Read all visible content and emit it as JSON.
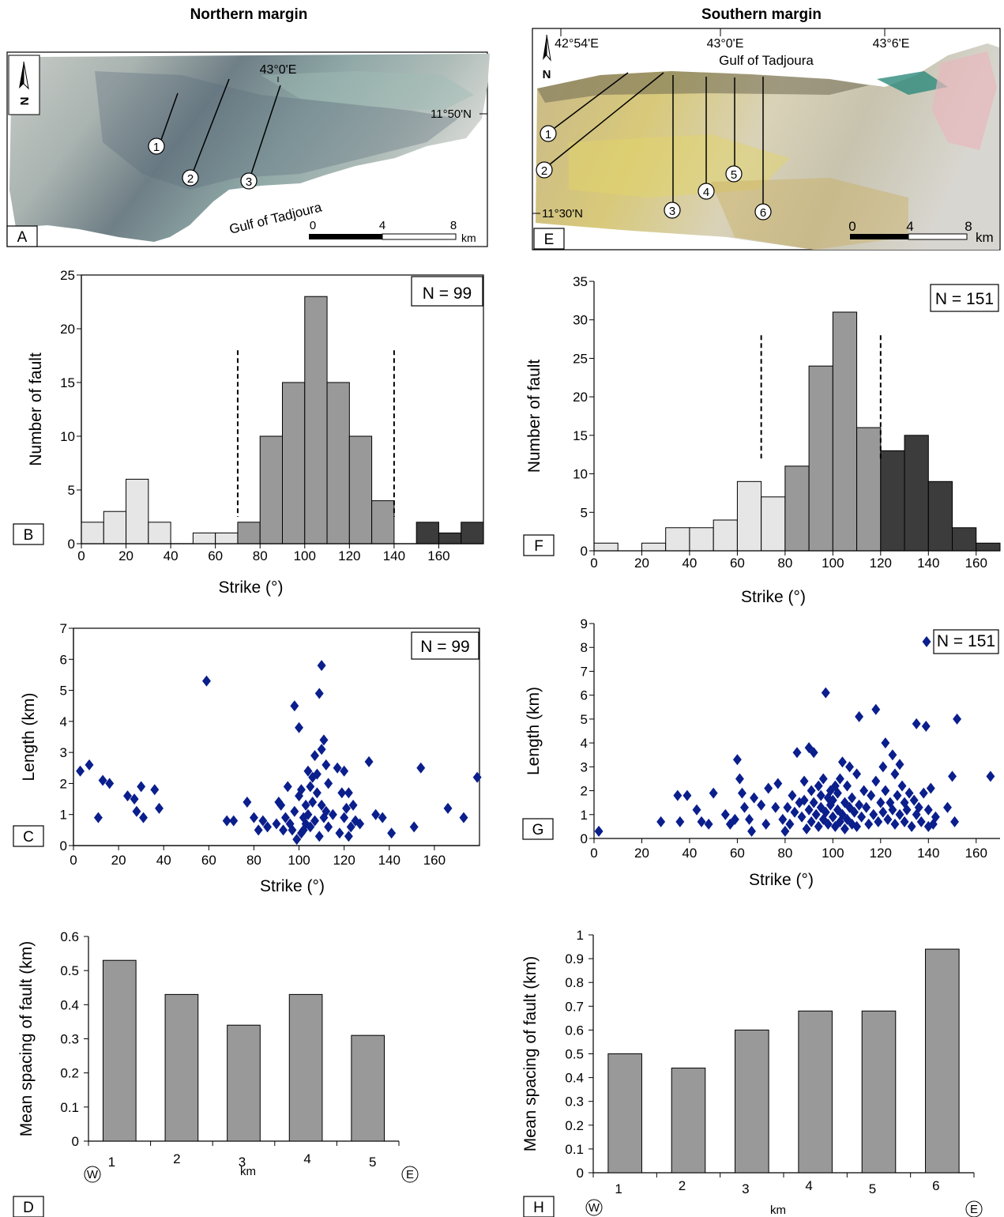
{
  "headers": {
    "north": "Northern margin",
    "south": "Southern margin"
  },
  "maps": {
    "north": {
      "panel": "A",
      "north_arrow": "N",
      "lon_label": "43°0'E",
      "lat_label": "11°50'N",
      "gulf": "Gulf of Tadjoura",
      "profiles": [
        "1",
        "2",
        "3"
      ],
      "scale": {
        "ticks": [
          "0",
          "4",
          "8"
        ],
        "unit": "km"
      }
    },
    "south": {
      "panel": "E",
      "north_arrow": "N",
      "lon_labels": [
        "42°54'E",
        "43°0'E",
        "43°6'E"
      ],
      "lat_label": "11°30'N",
      "gulf": "Gulf of Tadjoura",
      "profiles": [
        "1",
        "2",
        "3",
        "4",
        "5",
        "6"
      ],
      "scale": {
        "ticks": [
          "0",
          "4",
          "8"
        ],
        "unit": "km"
      }
    }
  },
  "chart_data": [
    {
      "panel": "B",
      "type": "bar",
      "subtype": "histogram",
      "n_label": "N = 99",
      "xlabel": "Strike (°)",
      "ylabel": "Number of fault",
      "xlim": [
        0,
        180
      ],
      "ylim": [
        0,
        25
      ],
      "xticks": [
        0,
        20,
        40,
        60,
        80,
        100,
        120,
        140,
        160
      ],
      "yticks": [
        0,
        5,
        10,
        15,
        20,
        25
      ],
      "bin_width": 10,
      "bins": [
        {
          "start": 0,
          "count": 2,
          "group": "light"
        },
        {
          "start": 10,
          "count": 3,
          "group": "light"
        },
        {
          "start": 20,
          "count": 6,
          "group": "light"
        },
        {
          "start": 30,
          "count": 2,
          "group": "light"
        },
        {
          "start": 50,
          "count": 1,
          "group": "light"
        },
        {
          "start": 60,
          "count": 1,
          "group": "light"
        },
        {
          "start": 70,
          "count": 2,
          "group": "medium"
        },
        {
          "start": 80,
          "count": 10,
          "group": "medium"
        },
        {
          "start": 90,
          "count": 15,
          "group": "medium"
        },
        {
          "start": 100,
          "count": 23,
          "group": "medium"
        },
        {
          "start": 110,
          "count": 15,
          "group": "medium"
        },
        {
          "start": 120,
          "count": 10,
          "group": "medium"
        },
        {
          "start": 130,
          "count": 4,
          "group": "medium"
        },
        {
          "start": 150,
          "count": 2,
          "group": "dark"
        },
        {
          "start": 160,
          "count": 1,
          "group": "dark"
        },
        {
          "start": 170,
          "count": 2,
          "group": "dark"
        }
      ],
      "dashed_lines": [
        70,
        140
      ],
      "colors": {
        "light": "#e6e6e6",
        "medium": "#999999",
        "dark": "#3c3c3c"
      }
    },
    {
      "panel": "F",
      "type": "bar",
      "subtype": "histogram",
      "n_label": "N = 151",
      "xlabel": "Strike (°)",
      "ylabel": "Number of fault",
      "xlim": [
        0,
        170
      ],
      "ylim": [
        0,
        35
      ],
      "xticks": [
        0,
        20,
        40,
        60,
        80,
        100,
        120,
        140,
        160
      ],
      "yticks": [
        0,
        5,
        10,
        15,
        20,
        25,
        30,
        35
      ],
      "bin_width": 10,
      "bins": [
        {
          "start": 0,
          "count": 1,
          "group": "light"
        },
        {
          "start": 20,
          "count": 1,
          "group": "light"
        },
        {
          "start": 30,
          "count": 3,
          "group": "light"
        },
        {
          "start": 40,
          "count": 3,
          "group": "light"
        },
        {
          "start": 50,
          "count": 4,
          "group": "light"
        },
        {
          "start": 60,
          "count": 9,
          "group": "light"
        },
        {
          "start": 70,
          "count": 7,
          "group": "light"
        },
        {
          "start": 80,
          "count": 11,
          "group": "medium"
        },
        {
          "start": 90,
          "count": 24,
          "group": "medium"
        },
        {
          "start": 100,
          "count": 31,
          "group": "medium"
        },
        {
          "start": 110,
          "count": 16,
          "group": "medium"
        },
        {
          "start": 120,
          "count": 13,
          "group": "dark"
        },
        {
          "start": 130,
          "count": 15,
          "group": "dark"
        },
        {
          "start": 140,
          "count": 9,
          "group": "dark"
        },
        {
          "start": 150,
          "count": 3,
          "group": "dark"
        },
        {
          "start": 160,
          "count": 1,
          "group": "dark"
        }
      ],
      "dashed_lines": [
        70,
        120
      ],
      "colors": {
        "light": "#e6e6e6",
        "medium": "#999999",
        "dark": "#3c3c3c"
      }
    },
    {
      "panel": "C",
      "type": "scatter",
      "n_label": "N = 99",
      "xlabel": "Strike (°)",
      "ylabel": "Length (km)",
      "xlim": [
        0,
        180
      ],
      "ylim": [
        0,
        7
      ],
      "xticks": [
        0,
        20,
        40,
        60,
        80,
        100,
        120,
        140,
        160
      ],
      "yticks": [
        0,
        1,
        2,
        3,
        4,
        5,
        6,
        7
      ],
      "marker_color": "#0a1e8c",
      "points": [
        [
          3,
          2.4
        ],
        [
          7,
          2.6
        ],
        [
          11,
          0.9
        ],
        [
          13,
          2.1
        ],
        [
          16,
          2.0
        ],
        [
          24,
          1.6
        ],
        [
          27,
          1.5
        ],
        [
          28,
          1.1
        ],
        [
          30,
          1.9
        ],
        [
          31,
          0.9
        ],
        [
          36,
          1.8
        ],
        [
          38,
          1.2
        ],
        [
          59,
          5.3
        ],
        [
          68,
          0.8
        ],
        [
          71,
          0.8
        ],
        [
          77,
          1.4
        ],
        [
          80,
          0.9
        ],
        [
          82,
          0.5
        ],
        [
          84,
          0.8
        ],
        [
          86,
          0.6
        ],
        [
          90,
          0.7
        ],
        [
          91,
          1.4
        ],
        [
          92,
          1.3
        ],
        [
          93,
          0.5
        ],
        [
          94,
          0.9
        ],
        [
          95,
          1.9
        ],
        [
          96,
          0.7
        ],
        [
          97,
          0.5
        ],
        [
          98,
          4.5
        ],
        [
          98,
          1.1
        ],
        [
          99,
          0.2
        ],
        [
          100,
          3.8
        ],
        [
          100,
          1.6
        ],
        [
          101,
          0.4
        ],
        [
          101,
          1.8
        ],
        [
          102,
          0.9
        ],
        [
          102,
          0.5
        ],
        [
          103,
          1.3
        ],
        [
          103,
          0.7
        ],
        [
          104,
          2.4
        ],
        [
          104,
          1.0
        ],
        [
          105,
          1.9
        ],
        [
          105,
          0.6
        ],
        [
          106,
          2.2
        ],
        [
          106,
          1.4
        ],
        [
          107,
          2.9
        ],
        [
          107,
          0.8
        ],
        [
          108,
          1.7
        ],
        [
          108,
          2.3
        ],
        [
          109,
          4.9
        ],
        [
          109,
          0.3
        ],
        [
          110,
          5.8
        ],
        [
          110,
          3.1
        ],
        [
          110,
          1.3
        ],
        [
          111,
          3.4
        ],
        [
          111,
          0.9
        ],
        [
          112,
          2.6
        ],
        [
          112,
          1.1
        ],
        [
          113,
          2.0
        ],
        [
          113,
          0.6
        ],
        [
          115,
          1.0
        ],
        [
          117,
          2.5
        ],
        [
          118,
          0.4
        ],
        [
          119,
          1.7
        ],
        [
          120,
          2.4
        ],
        [
          120,
          0.9
        ],
        [
          121,
          1.2
        ],
        [
          122,
          0.3
        ],
        [
          122,
          1.7
        ],
        [
          123,
          0.6
        ],
        [
          124,
          1.3
        ],
        [
          125,
          0.8
        ],
        [
          127,
          0.7
        ],
        [
          131,
          2.7
        ],
        [
          134,
          1.0
        ],
        [
          137,
          0.9
        ],
        [
          141,
          0.4
        ],
        [
          151,
          0.6
        ],
        [
          154,
          2.5
        ],
        [
          166,
          1.2
        ],
        [
          173,
          0.9
        ],
        [
          179,
          2.2
        ]
      ]
    },
    {
      "panel": "G",
      "type": "scatter",
      "n_label": "N = 151",
      "xlabel": "Strike (°)",
      "ylabel": "Length (km)",
      "xlim": [
        0,
        170
      ],
      "ylim": [
        0,
        9
      ],
      "xticks": [
        0,
        20,
        40,
        60,
        80,
        100,
        120,
        140,
        160
      ],
      "yticks": [
        0,
        1,
        2,
        3,
        4,
        5,
        6,
        7,
        8,
        9
      ],
      "marker_color": "#0a1e8c",
      "points": [
        [
          2,
          0.3
        ],
        [
          28,
          0.7
        ],
        [
          35,
          1.8
        ],
        [
          36,
          0.7
        ],
        [
          39,
          1.8
        ],
        [
          43,
          1.2
        ],
        [
          45,
          0.7
        ],
        [
          48,
          0.6
        ],
        [
          50,
          1.9
        ],
        [
          55,
          1.0
        ],
        [
          57,
          0.6
        ],
        [
          59,
          0.8
        ],
        [
          60,
          3.3
        ],
        [
          61,
          2.5
        ],
        [
          62,
          1.9
        ],
        [
          63,
          1.3
        ],
        [
          65,
          0.8
        ],
        [
          66,
          0.3
        ],
        [
          67,
          1.7
        ],
        [
          70,
          1.4
        ],
        [
          72,
          0.6
        ],
        [
          73,
          2.1
        ],
        [
          76,
          1.3
        ],
        [
          77,
          2.3
        ],
        [
          79,
          0.8
        ],
        [
          80,
          0.3
        ],
        [
          81,
          1.3
        ],
        [
          82,
          0.6
        ],
        [
          83,
          1.8
        ],
        [
          84,
          1.1
        ],
        [
          85,
          3.6
        ],
        [
          86,
          1.5
        ],
        [
          87,
          0.9
        ],
        [
          88,
          2.4
        ],
        [
          88,
          1.6
        ],
        [
          89,
          0.4
        ],
        [
          90,
          1.2
        ],
        [
          90,
          3.8
        ],
        [
          91,
          2.0
        ],
        [
          91,
          0.7
        ],
        [
          92,
          3.6
        ],
        [
          92,
          1.5
        ],
        [
          93,
          1.0
        ],
        [
          94,
          2.2
        ],
        [
          94,
          0.5
        ],
        [
          95,
          1.3
        ],
        [
          95,
          1.8
        ],
        [
          96,
          0.8
        ],
        [
          96,
          2.5
        ],
        [
          97,
          1.1
        ],
        [
          97,
          6.1
        ],
        [
          98,
          1.7
        ],
        [
          98,
          0.6
        ],
        [
          99,
          1.4
        ],
        [
          99,
          2.0
        ],
        [
          100,
          0.9
        ],
        [
          100,
          1.6
        ],
        [
          101,
          2.2
        ],
        [
          101,
          0.5
        ],
        [
          102,
          1.2
        ],
        [
          102,
          1.9
        ],
        [
          103,
          0.7
        ],
        [
          103,
          2.5
        ],
        [
          104,
          3.2
        ],
        [
          104,
          1.0
        ],
        [
          105,
          1.5
        ],
        [
          105,
          0.4
        ],
        [
          106,
          2.2
        ],
        [
          106,
          0.8
        ],
        [
          107,
          1.3
        ],
        [
          107,
          3.0
        ],
        [
          108,
          0.6
        ],
        [
          108,
          1.7
        ],
        [
          109,
          1.1
        ],
        [
          110,
          2.7
        ],
        [
          110,
          0.5
        ],
        [
          111,
          5.1
        ],
        [
          111,
          1.4
        ],
        [
          112,
          0.9
        ],
        [
          113,
          2.0
        ],
        [
          114,
          1.3
        ],
        [
          115,
          0.6
        ],
        [
          116,
          1.8
        ],
        [
          117,
          1.0
        ],
        [
          118,
          5.4
        ],
        [
          118,
          2.4
        ],
        [
          119,
          0.7
        ],
        [
          120,
          1.5
        ],
        [
          121,
          3.0
        ],
        [
          121,
          1.1
        ],
        [
          122,
          4.0
        ],
        [
          122,
          2.0
        ],
        [
          123,
          0.8
        ],
        [
          124,
          1.5
        ],
        [
          125,
          3.5
        ],
        [
          125,
          1.2
        ],
        [
          126,
          2.7
        ],
        [
          126,
          0.6
        ],
        [
          127,
          1.8
        ],
        [
          128,
          3.1
        ],
        [
          128,
          1.0
        ],
        [
          129,
          2.2
        ],
        [
          130,
          1.5
        ],
        [
          130,
          0.7
        ],
        [
          131,
          1.2
        ],
        [
          132,
          1.9
        ],
        [
          133,
          0.5
        ],
        [
          134,
          1.6
        ],
        [
          135,
          4.8
        ],
        [
          135,
          1.0
        ],
        [
          136,
          1.3
        ],
        [
          137,
          0.7
        ],
        [
          138,
          1.9
        ],
        [
          139,
          4.7
        ],
        [
          140,
          1.2
        ],
        [
          140,
          0.5
        ],
        [
          141,
          2.1
        ],
        [
          142,
          0.6
        ],
        [
          143,
          0.9
        ],
        [
          148,
          1.3
        ],
        [
          150,
          2.6
        ],
        [
          151,
          0.7
        ],
        [
          152,
          5.0
        ],
        [
          166,
          2.6
        ]
      ]
    },
    {
      "panel": "D",
      "type": "bar",
      "xlabel": "km",
      "ylabel": "Mean spacing of fault (km)",
      "ylim": [
        0,
        0.6
      ],
      "yticks": [
        "0",
        "0.1",
        "0.2",
        "0.3",
        "0.4",
        "0.5",
        "0.6"
      ],
      "categories": [
        "1",
        "2",
        "3",
        "4",
        "5"
      ],
      "values": [
        0.53,
        0.43,
        0.34,
        0.43,
        0.31
      ],
      "bar_color": "#999999",
      "west_label": "W",
      "east_label": "E"
    },
    {
      "panel": "H",
      "type": "bar",
      "xlabel": "km",
      "ylabel": "Mean spacing of fault (km)",
      "ylim": [
        0,
        1
      ],
      "yticks": [
        "0",
        "0.1",
        "0.2",
        "0.3",
        "0.4",
        "0.5",
        "0.6",
        "0.7",
        "0.8",
        "0.9",
        "1"
      ],
      "categories": [
        "1",
        "2",
        "3",
        "4",
        "5",
        "6"
      ],
      "values": [
        0.5,
        0.44,
        0.6,
        0.68,
        0.68,
        0.94
      ],
      "bar_color": "#999999",
      "west_label": "W",
      "east_label": "E"
    }
  ]
}
